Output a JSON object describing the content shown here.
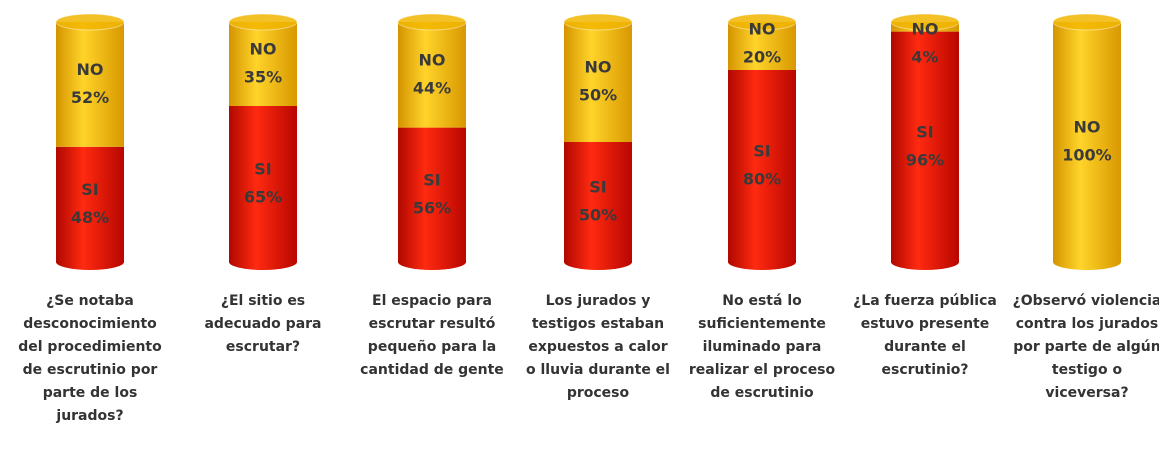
{
  "chart_data": {
    "type": "stacked_cylinder",
    "categories": [
      "¿Se notaba desconocimiento del procedimiento de escrutinio por parte de los jurados?",
      "¿El sitio es adecuado para escrutar?",
      "El espacio para escrutar resultó pequeño para la cantidad de gente",
      "Los jurados y testigos estaban expuestos a calor o lluvia durante el proceso",
      "No está lo suficientemente iluminado para realizar el proceso de escrutinio",
      "¿La fuerza pública estuvo presente durante el escrutinio?",
      "¿Observó violencia contra los jurados por parte de algún testigo o viceversa?"
    ],
    "series": [
      {
        "name": "SI",
        "color": "#e8140c",
        "values": [
          48,
          65,
          56,
          50,
          80,
          96,
          0
        ],
        "value_labels": [
          "48%",
          "65%",
          "56%",
          "50%",
          "80%",
          "96%",
          null
        ]
      },
      {
        "name": "NO",
        "color": "#f2b600",
        "values": [
          52,
          35,
          44,
          50,
          20,
          4,
          100
        ],
        "value_labels": [
          "52%",
          "35%",
          "44%",
          "50%",
          "20%",
          "4%",
          "100%"
        ]
      }
    ]
  }
}
